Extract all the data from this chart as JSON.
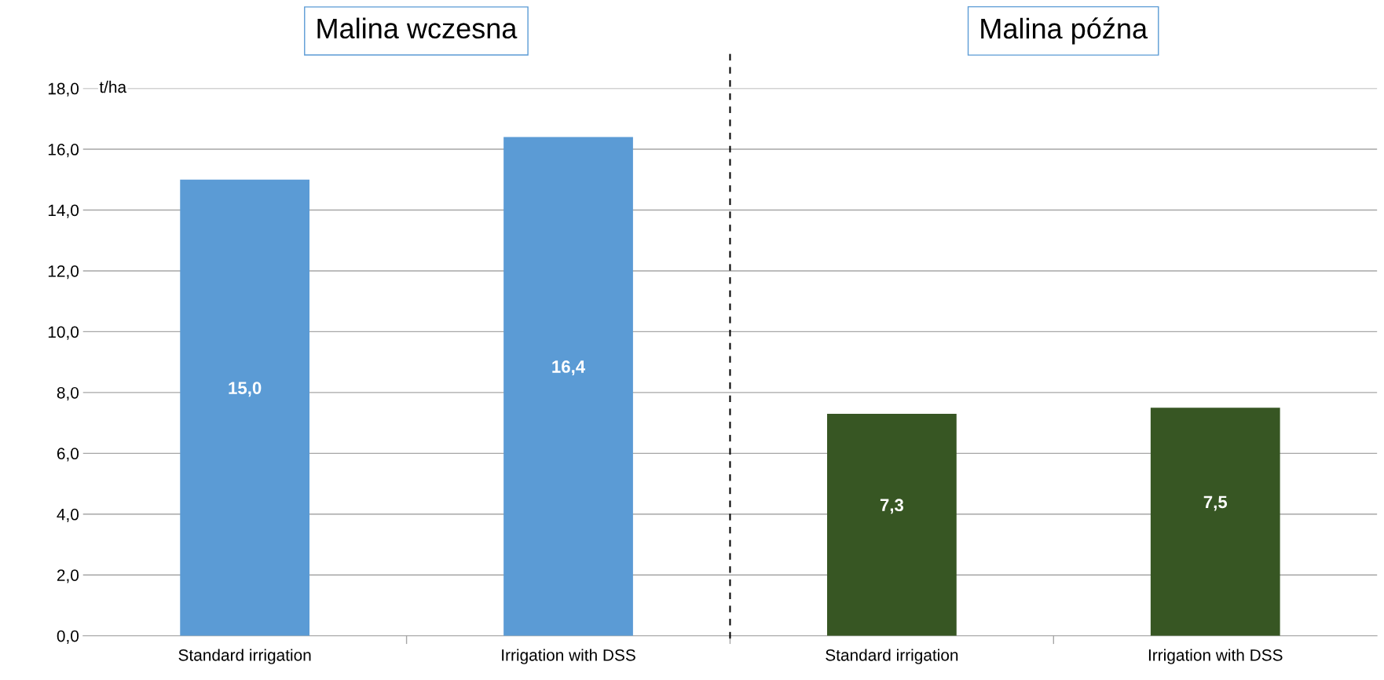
{
  "chart_data": {
    "type": "bar",
    "ylabel": "t/ha",
    "categories": [
      "Standard irrigation",
      "Irrigation with DSS",
      "Standard irrigation",
      "Irrigation with DSS"
    ],
    "values": [
      15.0,
      16.4,
      7.3,
      7.5
    ],
    "colors": [
      "#5b9bd5",
      "#5b9bd5",
      "#375623",
      "#375623"
    ],
    "value_labels": [
      "15,0",
      "16,4",
      "7,3",
      "7,5"
    ],
    "ylim": [
      0,
      18
    ],
    "yticks": [
      {
        "value": 0,
        "label": "0,0"
      },
      {
        "value": 2,
        "label": "2,0"
      },
      {
        "value": 4,
        "label": "4,0"
      },
      {
        "value": 6,
        "label": "6,0"
      },
      {
        "value": 8,
        "label": "8,0"
      },
      {
        "value": 10,
        "label": "10,0"
      },
      {
        "value": 12,
        "label": "12,0"
      },
      {
        "value": 14,
        "label": "14,0"
      },
      {
        "value": 16,
        "label": "16,0"
      },
      {
        "value": 18,
        "label": "18,0"
      }
    ],
    "annotations": [
      "Malina wczesna",
      "Malina późna"
    ],
    "grid": "y"
  }
}
